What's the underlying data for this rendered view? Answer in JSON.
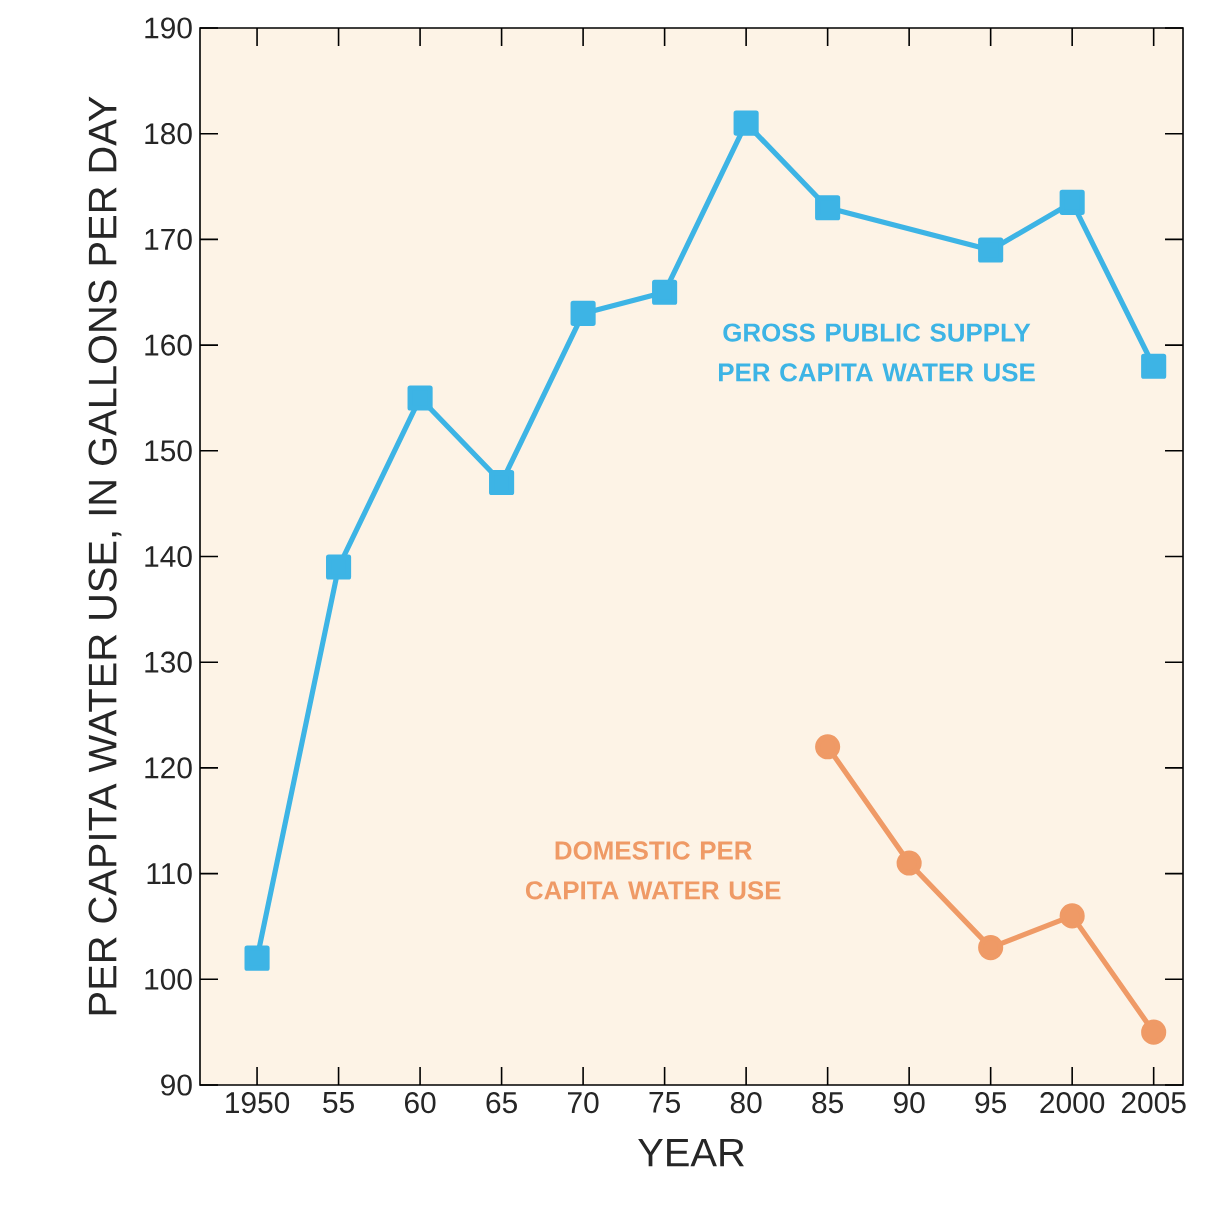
{
  "chart_data": {
    "type": "line",
    "xlabel": "YEAR",
    "ylabel": "PER CAPITA WATER USE, IN GALLONS PER DAY",
    "xlim": [
      1946.5,
      2006.8
    ],
    "ylim": [
      90,
      190
    ],
    "xticks": [
      {
        "value": 1950,
        "label": "1950"
      },
      {
        "value": 1955,
        "label": "55"
      },
      {
        "value": 1960,
        "label": "60"
      },
      {
        "value": 1965,
        "label": "65"
      },
      {
        "value": 1970,
        "label": "70"
      },
      {
        "value": 1975,
        "label": "75"
      },
      {
        "value": 1980,
        "label": "80"
      },
      {
        "value": 1985,
        "label": "85"
      },
      {
        "value": 1990,
        "label": "90"
      },
      {
        "value": 1995,
        "label": "95"
      },
      {
        "value": 2000,
        "label": "2000"
      },
      {
        "value": 2005,
        "label": "2005"
      }
    ],
    "yticks": [
      90,
      100,
      110,
      120,
      130,
      140,
      150,
      160,
      170,
      180,
      190
    ],
    "series": [
      {
        "name": "GROSS PUBLIC SUPPLY PER CAPITA WATER USE",
        "color": "#3db4e5",
        "marker": "square",
        "x": [
          1950,
          1955,
          1960,
          1965,
          1970,
          1975,
          1980,
          1985,
          1995,
          2000,
          2005
        ],
        "values": [
          102,
          139,
          155,
          147,
          163,
          165,
          181,
          173,
          169,
          173.5,
          158
        ]
      },
      {
        "name": "DOMESTIC PER CAPITA WATER USE",
        "color": "#ef9a66",
        "marker": "circle",
        "x": [
          1985,
          1990,
          1995,
          2000,
          2005
        ],
        "values": [
          122,
          111,
          103,
          106,
          95
        ]
      }
    ]
  }
}
